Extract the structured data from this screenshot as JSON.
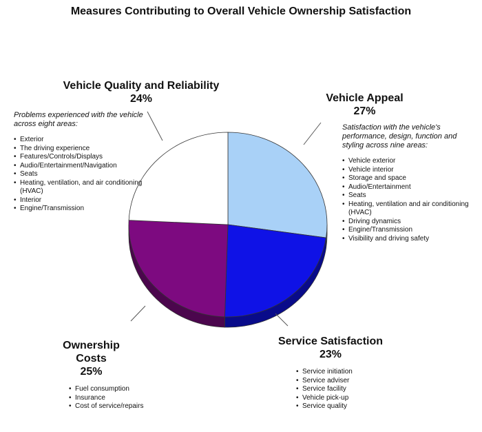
{
  "chart_data": {
    "type": "pie",
    "title": "Measures Contributing to Overall Vehicle Ownership Satisfaction",
    "categories": [
      "Vehicle Appeal",
      "Service Satisfaction",
      "Ownership Costs",
      "Vehicle Quality and Reliability"
    ],
    "values": [
      27,
      23,
      25,
      24
    ],
    "value_labels": [
      "27%",
      "23%",
      "25%",
      "24%"
    ],
    "colors": [
      "#a9d1f7",
      "#0f12e6",
      "#7d0a80",
      "#ffffff"
    ],
    "annotations": [
      {
        "description": "Satisfaction with the vehicle's performance, design, function and styling across nine areas:",
        "items": [
          "Vehicle exterior",
          "Vehicle interior",
          "Storage and space",
          "Audio/Entertainment",
          "Seats",
          "Heating, ventilation and air conditioning (HVAC)",
          "Driving dynamics",
          "Engine/Transmission",
          "Visibility and driving safety"
        ]
      },
      {
        "items": [
          "Service initiation",
          "Service adviser",
          "Service facility",
          "Vehicle pick-up",
          "Service quality"
        ]
      },
      {
        "items": [
          "Fuel consumption",
          "Insurance",
          "Cost of service/repairs"
        ]
      },
      {
        "description": "Problems experienced with the vehicle across eight areas:",
        "items": [
          "Exterior",
          "The driving experience",
          "Features/Controls/Displays",
          "Audio/Entertainment/Navigation",
          "Seats",
          "Heating, ventilation, and air conditioning (HVAC)",
          "Interior",
          "Engine/Transmission"
        ]
      }
    ]
  }
}
